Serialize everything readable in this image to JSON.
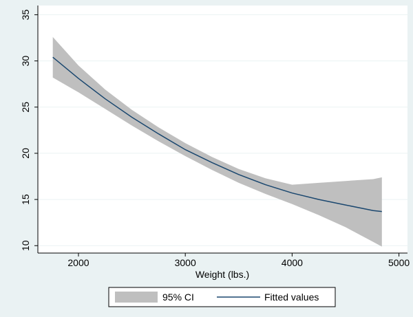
{
  "chart_data": {
    "type": "line",
    "title": "",
    "xlabel": "Weight (lbs.)",
    "ylabel": "",
    "xlim": [
      1620,
      5080
    ],
    "ylim": [
      9.2,
      36
    ],
    "x_ticks": [
      2000,
      3000,
      4000,
      5000
    ],
    "y_ticks": [
      10,
      15,
      20,
      25,
      30,
      35
    ],
    "grid": true,
    "legend_position": "bottom",
    "colors": {
      "background": "#eaf2f3",
      "plot_area": "#ffffff",
      "ci_band": "#bfbfbf",
      "line": "#1a476f",
      "grid": "#eaf2f3"
    },
    "series": [
      {
        "name": "95% CI",
        "kind": "band",
        "x": [
          1760,
          2000,
          2250,
          2500,
          2750,
          3000,
          3250,
          3500,
          3750,
          4000,
          4250,
          4500,
          4760,
          4840
        ],
        "lower": [
          28.2,
          26.6,
          24.8,
          23.0,
          21.3,
          19.7,
          18.2,
          16.8,
          15.6,
          14.5,
          13.3,
          12.0,
          10.4,
          9.9
        ],
        "upper": [
          32.6,
          29.5,
          26.9,
          24.7,
          22.8,
          21.1,
          19.6,
          18.3,
          17.3,
          16.6,
          16.8,
          17.0,
          17.2,
          17.4
        ]
      },
      {
        "name": "Fitted values",
        "kind": "line",
        "x": [
          1760,
          2000,
          2250,
          2500,
          2750,
          3000,
          3250,
          3500,
          3750,
          4000,
          4250,
          4500,
          4760,
          4840
        ],
        "y": [
          30.4,
          28.1,
          25.9,
          23.9,
          22.1,
          20.4,
          19.0,
          17.7,
          16.6,
          15.7,
          15.0,
          14.4,
          13.8,
          13.7
        ]
      }
    ]
  }
}
